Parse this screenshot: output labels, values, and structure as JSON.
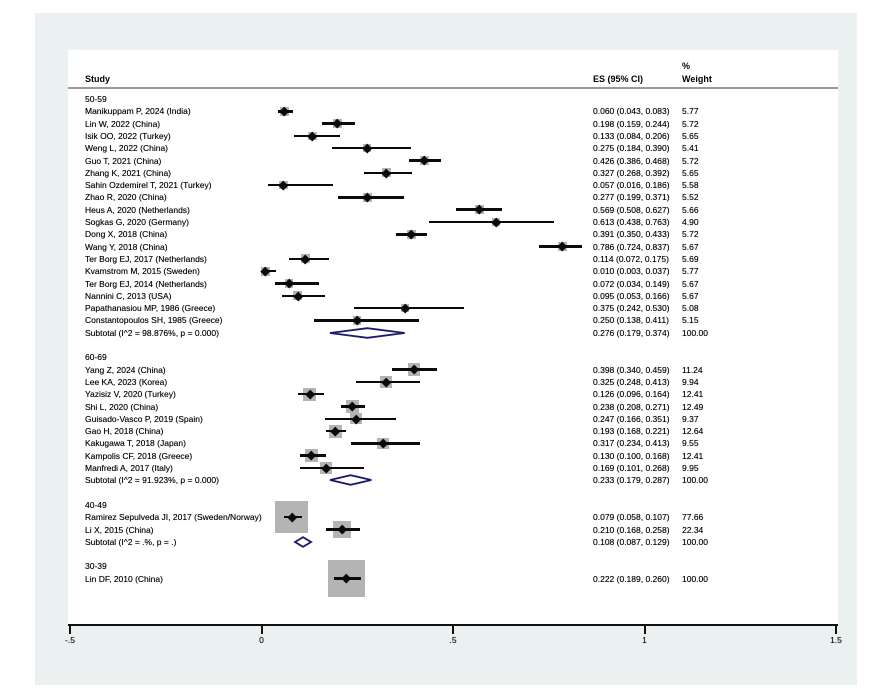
{
  "header": {
    "study": "Study",
    "es": "ES (95% CI)",
    "weight_pct": "%",
    "weight": "Weight"
  },
  "colors": {
    "panel_bg": "#eaf1f0",
    "plot_bg": "#ffffff",
    "line": "#0a0a0a",
    "weight_box": "#b4b4b4",
    "diamond": "#1a1a70",
    "rule": "#9a9a9a"
  },
  "axis": {
    "ticks": [
      {
        "label": "-.5",
        "value": -0.5
      },
      {
        "label": "0",
        "value": 0
      },
      {
        "label": ".5",
        "value": 0.5
      },
      {
        "label": "1",
        "value": 1
      },
      {
        "label": "1.5",
        "value": 1.5
      }
    ]
  },
  "chart_data": {
    "type": "forest",
    "x_range": [
      -0.5,
      1.5
    ],
    "groups": [
      {
        "label": "50-59",
        "studies": [
          {
            "label": "Manikuppam P, 2024 (India)",
            "es": 0.06,
            "lo": 0.043,
            "hi": 0.083,
            "weight": 5.77
          },
          {
            "label": "Lin W, 2022 (China)",
            "es": 0.198,
            "lo": 0.159,
            "hi": 0.244,
            "weight": 5.72
          },
          {
            "label": "Isik OO, 2022 (Turkey)",
            "es": 0.133,
            "lo": 0.084,
            "hi": 0.206,
            "weight": 5.65
          },
          {
            "label": "Weng L, 2022 (China)",
            "es": 0.275,
            "lo": 0.184,
            "hi": 0.39,
            "weight": 5.41
          },
          {
            "label": "Guo T,  2021 (China)",
            "es": 0.426,
            "lo": 0.386,
            "hi": 0.468,
            "weight": 5.72
          },
          {
            "label": "Zhang K, 2021 (China)",
            "es": 0.327,
            "lo": 0.268,
            "hi": 0.392,
            "weight": 5.65
          },
          {
            "label": "Sahin Ozdemirel T, 2021 (Turkey)",
            "es": 0.057,
            "lo": 0.016,
            "hi": 0.186,
            "weight": 5.58
          },
          {
            "label": "Zhao R, 2020 (China)",
            "es": 0.277,
            "lo": 0.199,
            "hi": 0.371,
            "weight": 5.52
          },
          {
            "label": "Heus A, 2020 (Netherlands)",
            "es": 0.569,
            "lo": 0.508,
            "hi": 0.627,
            "weight": 5.66
          },
          {
            "label": "Sogkas G, 2020 (Germany)",
            "es": 0.613,
            "lo": 0.438,
            "hi": 0.763,
            "weight": 4.9
          },
          {
            "label": "Dong X, 2018 (China)",
            "es": 0.391,
            "lo": 0.35,
            "hi": 0.433,
            "weight": 5.72
          },
          {
            "label": "Wang Y, 2018 (China)",
            "es": 0.786,
            "lo": 0.724,
            "hi": 0.837,
            "weight": 5.67
          },
          {
            "label": "Ter Borg EJ, 2017 (Netherlands)",
            "es": 0.114,
            "lo": 0.072,
            "hi": 0.175,
            "weight": 5.69
          },
          {
            "label": "Kvamstrom M, 2015 (Sweden)",
            "es": 0.01,
            "lo": 0.003,
            "hi": 0.037,
            "weight": 5.77
          },
          {
            "label": "Ter Borg EJ, 2014 (Netherlands)",
            "es": 0.072,
            "lo": 0.034,
            "hi": 0.149,
            "weight": 5.67
          },
          {
            "label": "Nannini C, 2013 (USA)",
            "es": 0.095,
            "lo": 0.053,
            "hi": 0.166,
            "weight": 5.67
          },
          {
            "label": "Papathanasiou MP, 1986 (Greece)",
            "es": 0.375,
            "lo": 0.242,
            "hi": 0.53,
            "weight": 5.08
          },
          {
            "label": "Constantopoulos SH, 1985 (Greece)",
            "es": 0.25,
            "lo": 0.138,
            "hi": 0.411,
            "weight": 5.15
          }
        ],
        "subtotal": {
          "label": "Subtotal  (I^2 = 98.876%, p = 0.000)",
          "es": 0.276,
          "lo": 0.179,
          "hi": 0.374,
          "weight": 100.0
        }
      },
      {
        "label": "60-69",
        "studies": [
          {
            "label": "Yang Z, 2024 (China)",
            "es": 0.398,
            "lo": 0.34,
            "hi": 0.459,
            "weight": 11.24
          },
          {
            "label": "Lee KA, 2023 (Korea)",
            "es": 0.325,
            "lo": 0.248,
            "hi": 0.413,
            "weight": 9.94
          },
          {
            "label": "Yazisiz V, 2020 (Turkey)",
            "es": 0.126,
            "lo": 0.096,
            "hi": 0.164,
            "weight": 12.41
          },
          {
            "label": "Shi L, 2020 (China)",
            "es": 0.238,
            "lo": 0.208,
            "hi": 0.271,
            "weight": 12.49
          },
          {
            "label": "Guisado-Vasco P, 2019 (Spain)",
            "es": 0.247,
            "lo": 0.166,
            "hi": 0.351,
            "weight": 9.37
          },
          {
            "label": "Gao H, 2018 (China)",
            "es": 0.193,
            "lo": 0.168,
            "hi": 0.221,
            "weight": 12.64
          },
          {
            "label": "Kakugawa T, 2018 (Japan)",
            "es": 0.317,
            "lo": 0.234,
            "hi": 0.413,
            "weight": 9.55
          },
          {
            "label": "Kampolis CF, 2018 (Greece)",
            "es": 0.13,
            "lo": 0.1,
            "hi": 0.168,
            "weight": 12.41
          },
          {
            "label": "Manfredi A, 2017 (Italy)",
            "es": 0.169,
            "lo": 0.101,
            "hi": 0.268,
            "weight": 9.95
          }
        ],
        "subtotal": {
          "label": "Subtotal  (I^2 = 91.923%, p = 0.000)",
          "es": 0.233,
          "lo": 0.179,
          "hi": 0.287,
          "weight": 100.0
        }
      },
      {
        "label": "40-49",
        "studies": [
          {
            "label": "Ramirez Sepulveda JI, 2017 (Sweden/Norway)",
            "es": 0.079,
            "lo": 0.058,
            "hi": 0.107,
            "weight": 77.66
          },
          {
            "label": "Li X, 2015 (China)",
            "es": 0.21,
            "lo": 0.168,
            "hi": 0.258,
            "weight": 22.34
          }
        ],
        "subtotal": {
          "label": "Subtotal  (I^2 = .%, p = .)",
          "es": 0.108,
          "lo": 0.087,
          "hi": 0.129,
          "weight": 100.0
        }
      },
      {
        "label": "30-39",
        "studies": [
          {
            "label": "Lin DF, 2010 (China)",
            "es": 0.222,
            "lo": 0.189,
            "hi": 0.26,
            "weight": 100.0
          }
        ],
        "subtotal": null
      }
    ]
  }
}
